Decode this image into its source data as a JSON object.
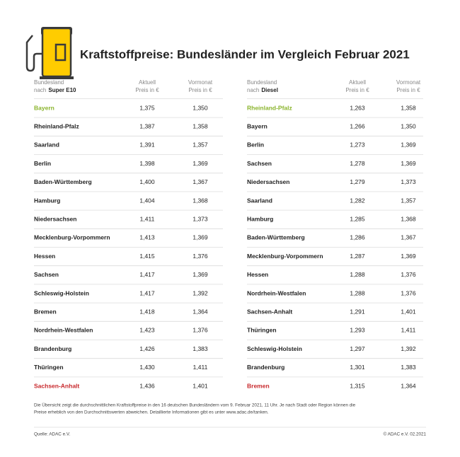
{
  "title": "Kraftstoffpreise: Bundesländer im Vergleich Februar 2021",
  "tables": [
    {
      "header": {
        "land": "Bundesland",
        "prefix": "nach",
        "fuel": "Super E10",
        "current": [
          "Aktuell",
          "Preis in €"
        ],
        "previous": [
          "Vormonat",
          "Preis in €"
        ]
      },
      "rows": [
        [
          "Bayern",
          "1,375",
          "1,350"
        ],
        [
          "Rheinland-Pfalz",
          "1,387",
          "1,358"
        ],
        [
          "Saarland",
          "1,391",
          "1,357"
        ],
        [
          "Berlin",
          "1,398",
          "1,369"
        ],
        [
          "Baden-Württemberg",
          "1,400",
          "1,367"
        ],
        [
          "Hamburg",
          "1,404",
          "1,368"
        ],
        [
          "Niedersachsen",
          "1,411",
          "1,373"
        ],
        [
          "Mecklenburg-Vorpommern",
          "1,413",
          "1,369"
        ],
        [
          "Hessen",
          "1,415",
          "1,376"
        ],
        [
          "Sachsen",
          "1,417",
          "1,369"
        ],
        [
          "Schleswig-Holstein",
          "1,417",
          "1,392"
        ],
        [
          "Bremen",
          "1,418",
          "1,364"
        ],
        [
          "Nordrhein-Westfalen",
          "1,423",
          "1,376"
        ],
        [
          "Brandenburg",
          "1,426",
          "1,383"
        ],
        [
          "Thüringen",
          "1,430",
          "1,411"
        ],
        [
          "Sachsen-Anhalt",
          "1,436",
          "1,401"
        ]
      ]
    },
    {
      "header": {
        "land": "Bundesland",
        "prefix": "nach",
        "fuel": "Diesel",
        "current": [
          "Aktuell",
          "Preis in €"
        ],
        "previous": [
          "Vormonat",
          "Preis in €"
        ]
      },
      "rows": [
        [
          "Rheinland-Pfalz",
          "1,263",
          "1,358"
        ],
        [
          "Bayern",
          "1,266",
          "1,350"
        ],
        [
          "Berlin",
          "1,273",
          "1,369"
        ],
        [
          "Sachsen",
          "1,278",
          "1,369"
        ],
        [
          "Niedersachsen",
          "1,279",
          "1,373"
        ],
        [
          "Saarland",
          "1,282",
          "1,357"
        ],
        [
          "Hamburg",
          "1,285",
          "1,368"
        ],
        [
          "Baden-Württemberg",
          "1,286",
          "1,367"
        ],
        [
          "Mecklenburg-Vorpommern",
          "1,287",
          "1,369"
        ],
        [
          "Hessen",
          "1,288",
          "1,376"
        ],
        [
          "Nordrhein-Westfalen",
          "1,288",
          "1,376"
        ],
        [
          "Sachsen-Anhalt",
          "1,291",
          "1,401"
        ],
        [
          "Thüringen",
          "1,293",
          "1,411"
        ],
        [
          "Schleswig-Holstein",
          "1,297",
          "1,392"
        ],
        [
          "Brandenburg",
          "1,301",
          "1,383"
        ],
        [
          "Bremen",
          "1,315",
          "1,364"
        ]
      ]
    }
  ],
  "footnote": [
    "Die Übersicht zeigt die durchschnittlichen Kraftstoffpreise in den 16 deutschen Bundesländern vom 9. Februar 2021, 11 Uhr. Je nach Stadt oder Region können die",
    "Preise erheblich von den Durchschnittswerten abweichen. Detaillierte Informationen gibt es unter www.adac.de/tanken."
  ],
  "source": "Quelle: ADAC e.V.",
  "copyright": "© ADAC e.V. 02.2021"
}
